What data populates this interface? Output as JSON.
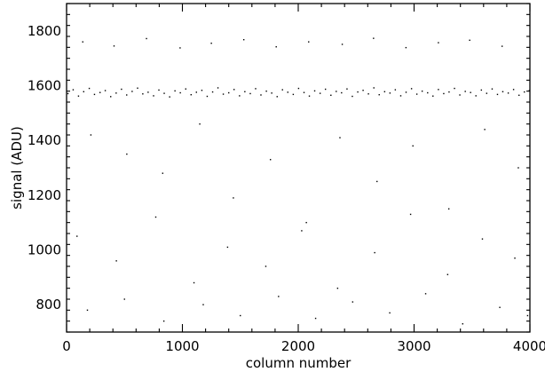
{
  "chart_data": {
    "type": "scatter",
    "title": "",
    "xlabel": "column number",
    "ylabel": "signal (ADU)",
    "xlim": [
      0,
      4000
    ],
    "ylim": [
      700,
      1900
    ],
    "x_ticks": [
      0,
      1000,
      2000,
      3000,
      4000
    ],
    "y_ticks": [
      800,
      1000,
      1200,
      1400,
      1600,
      1800
    ],
    "grid": false,
    "legend": "none",
    "series": [
      {
        "marker_color": "#000000",
        "description_of_distribution": "dense horizontal band centred near 1575 ADU spanning all columns; sparse band near 1750 ADU; scattered points between 700 and 1550 ADU",
        "points": [
          [
            12,
            1571
          ],
          [
            57,
            1585
          ],
          [
            103,
            1562
          ],
          [
            148,
            1578
          ],
          [
            196,
            1590
          ],
          [
            241,
            1568
          ],
          [
            289,
            1575
          ],
          [
            334,
            1582
          ],
          [
            381,
            1560
          ],
          [
            428,
            1573
          ],
          [
            474,
            1587
          ],
          [
            519,
            1566
          ],
          [
            566,
            1579
          ],
          [
            613,
            1591
          ],
          [
            658,
            1570
          ],
          [
            704,
            1576
          ],
          [
            751,
            1563
          ],
          [
            797,
            1584
          ],
          [
            843,
            1572
          ],
          [
            890,
            1559
          ],
          [
            936,
            1581
          ],
          [
            982,
            1574
          ],
          [
            1029,
            1588
          ],
          [
            1075,
            1567
          ],
          [
            1121,
            1576
          ],
          [
            1168,
            1583
          ],
          [
            1214,
            1561
          ],
          [
            1261,
            1577
          ],
          [
            1307,
            1592
          ],
          [
            1353,
            1569
          ],
          [
            1400,
            1574
          ],
          [
            1446,
            1586
          ],
          [
            1493,
            1563
          ],
          [
            1539,
            1578
          ],
          [
            1586,
            1571
          ],
          [
            1632,
            1589
          ],
          [
            1678,
            1566
          ],
          [
            1725,
            1580
          ],
          [
            1771,
            1573
          ],
          [
            1818,
            1560
          ],
          [
            1864,
            1585
          ],
          [
            1910,
            1576
          ],
          [
            1957,
            1568
          ],
          [
            2003,
            1590
          ],
          [
            2050,
            1575
          ],
          [
            2096,
            1562
          ],
          [
            2142,
            1581
          ],
          [
            2189,
            1572
          ],
          [
            2235,
            1587
          ],
          [
            2282,
            1565
          ],
          [
            2328,
            1579
          ],
          [
            2374,
            1574
          ],
          [
            2421,
            1588
          ],
          [
            2467,
            1561
          ],
          [
            2514,
            1577
          ],
          [
            2560,
            1583
          ],
          [
            2606,
            1570
          ],
          [
            2653,
            1592
          ],
          [
            2699,
            1567
          ],
          [
            2746,
            1578
          ],
          [
            2792,
            1573
          ],
          [
            2838,
            1585
          ],
          [
            2885,
            1563
          ],
          [
            2931,
            1576
          ],
          [
            2978,
            1589
          ],
          [
            3024,
            1569
          ],
          [
            3070,
            1580
          ],
          [
            3117,
            1574
          ],
          [
            3163,
            1562
          ],
          [
            3210,
            1586
          ],
          [
            3256,
            1571
          ],
          [
            3302,
            1577
          ],
          [
            3349,
            1590
          ],
          [
            3395,
            1566
          ],
          [
            3442,
            1579
          ],
          [
            3488,
            1575
          ],
          [
            3534,
            1563
          ],
          [
            3581,
            1584
          ],
          [
            3627,
            1572
          ],
          [
            3674,
            1588
          ],
          [
            3720,
            1568
          ],
          [
            3766,
            1578
          ],
          [
            3813,
            1573
          ],
          [
            3859,
            1586
          ],
          [
            3906,
            1565
          ],
          [
            3952,
            1577
          ],
          [
            3995,
            1582
          ],
          [
            140,
            1760
          ],
          [
            410,
            1745
          ],
          [
            690,
            1772
          ],
          [
            980,
            1738
          ],
          [
            1250,
            1755
          ],
          [
            1530,
            1768
          ],
          [
            1810,
            1742
          ],
          [
            2090,
            1760
          ],
          [
            2380,
            1751
          ],
          [
            2650,
            1773
          ],
          [
            2930,
            1739
          ],
          [
            3210,
            1757
          ],
          [
            3480,
            1766
          ],
          [
            3760,
            1744
          ],
          [
            210,
            1420
          ],
          [
            520,
            1350
          ],
          [
            830,
            1280
          ],
          [
            1150,
            1460
          ],
          [
            1440,
            1190
          ],
          [
            1760,
            1330
          ],
          [
            2070,
            1100
          ],
          [
            2360,
            1410
          ],
          [
            2680,
            1250
          ],
          [
            2990,
            1380
          ],
          [
            3300,
            1150
          ],
          [
            3610,
            1440
          ],
          [
            3900,
            1300
          ],
          [
            90,
            1050
          ],
          [
            430,
            960
          ],
          [
            770,
            1120
          ],
          [
            1100,
            880
          ],
          [
            1390,
            1010
          ],
          [
            1720,
            940
          ],
          [
            2030,
            1070
          ],
          [
            2340,
            860
          ],
          [
            2660,
            990
          ],
          [
            2970,
            1130
          ],
          [
            3290,
            910
          ],
          [
            3590,
            1040
          ],
          [
            3870,
            970
          ],
          [
            180,
            780
          ],
          [
            500,
            820
          ],
          [
            840,
            740
          ],
          [
            1180,
            800
          ],
          [
            1500,
            760
          ],
          [
            1830,
            830
          ],
          [
            2150,
            750
          ],
          [
            2470,
            810
          ],
          [
            2790,
            770
          ],
          [
            3100,
            840
          ],
          [
            3420,
            730
          ],
          [
            3740,
            790
          ],
          [
            3980,
            760
          ]
        ]
      }
    ]
  }
}
